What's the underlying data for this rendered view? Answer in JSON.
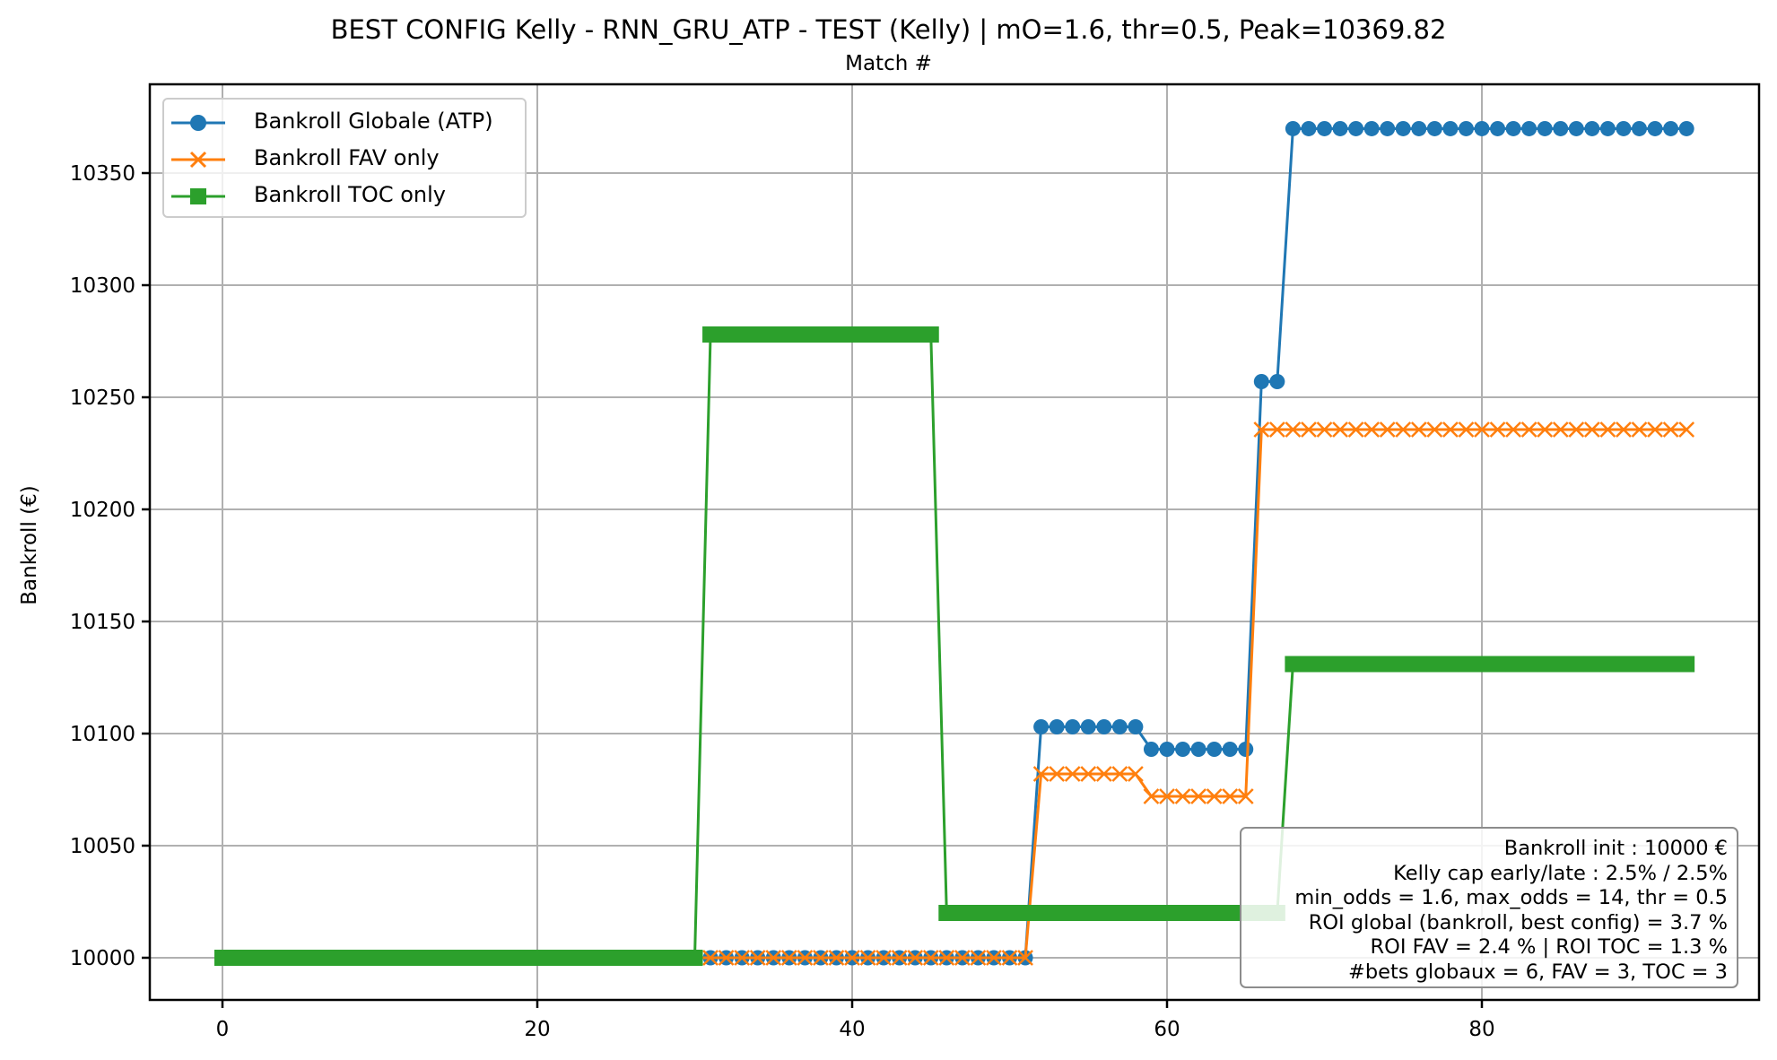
{
  "chart_data": {
    "type": "line",
    "title": "BEST CONFIG Kelly - RNN_GRU_ATP - TEST (Kelly) | mO=1.6, thr=0.5, Peak=10369.82",
    "xlabel": "Match #",
    "ylabel": "Bankroll (€)",
    "xlim": [
      -4.6,
      97.6
    ],
    "ylim": [
      9981.2,
      10389.6
    ],
    "xticks": [
      0,
      20,
      40,
      60,
      80
    ],
    "yticks": [
      10000,
      10050,
      10100,
      10150,
      10200,
      10250,
      10300,
      10350
    ],
    "grid": true,
    "legend_position": "upper left",
    "x": [
      0,
      1,
      2,
      3,
      4,
      5,
      6,
      7,
      8,
      9,
      10,
      11,
      12,
      13,
      14,
      15,
      16,
      17,
      18,
      19,
      20,
      21,
      22,
      23,
      24,
      25,
      26,
      27,
      28,
      29,
      30,
      31,
      32,
      33,
      34,
      35,
      36,
      37,
      38,
      39,
      40,
      41,
      42,
      43,
      44,
      45,
      46,
      47,
      48,
      49,
      50,
      51,
      52,
      53,
      54,
      55,
      56,
      57,
      58,
      59,
      60,
      61,
      62,
      63,
      64,
      65,
      66,
      67,
      68,
      69,
      70,
      71,
      72,
      73,
      74,
      75,
      76,
      77,
      78,
      79,
      80,
      81,
      82,
      83,
      84,
      85,
      86,
      87,
      88,
      89,
      90,
      91,
      92,
      93
    ],
    "series": [
      {
        "name": "Bankroll Globale (ATP)",
        "color": "#1f77b4",
        "marker": "circle",
        "segments": [
          {
            "from": 0,
            "to": 51,
            "value": 10000
          },
          {
            "from": 52,
            "to": 58,
            "value": 10103
          },
          {
            "from": 59,
            "to": 65,
            "value": 10093
          },
          {
            "from": 66,
            "to": 67,
            "value": 10257
          },
          {
            "from": 68,
            "to": 93,
            "value": 10369.82
          }
        ]
      },
      {
        "name": "Bankroll FAV only",
        "color": "#ff7f0e",
        "marker": "x",
        "segments": [
          {
            "from": 0,
            "to": 51,
            "value": 10000
          },
          {
            "from": 52,
            "to": 58,
            "value": 10082
          },
          {
            "from": 59,
            "to": 65,
            "value": 10072
          },
          {
            "from": 66,
            "to": 93,
            "value": 10235.6
          }
        ]
      },
      {
        "name": "Bankroll TOC only",
        "color": "#2ca02c",
        "marker": "square",
        "segments": [
          {
            "from": 0,
            "to": 30,
            "value": 10000
          },
          {
            "from": 31,
            "to": 45,
            "value": 10278
          },
          {
            "from": 46,
            "to": 67,
            "value": 10020
          },
          {
            "from": 68,
            "to": 93,
            "value": 10131
          }
        ]
      }
    ],
    "annotation_box": [
      "Bankroll init : 10000 €",
      "Kelly cap early/late : 2.5% / 2.5%",
      "min_odds = 1.6, max_odds = 14, thr = 0.5",
      "ROI global (bankroll, best config) = 3.7 %",
      "ROI FAV = 2.4 % | ROI TOC = 1.3 %",
      "#bets globaux = 6, FAV = 3, TOC = 3"
    ]
  },
  "legend": {
    "items": [
      {
        "label": "Bankroll Globale (ATP)",
        "icon": "circle-marker-line-icon",
        "color": "#1f77b4"
      },
      {
        "label": "Bankroll FAV only",
        "icon": "x-marker-line-icon",
        "color": "#ff7f0e"
      },
      {
        "label": "Bankroll TOC only",
        "icon": "square-marker-line-icon",
        "color": "#2ca02c"
      }
    ]
  },
  "info": {
    "lines": [
      "Bankroll init : 10000 €",
      "Kelly cap early/late : 2.5% / 2.5%",
      "min_odds = 1.6, max_odds = 14, thr = 0.5",
      "ROI global (bankroll, best config) = 3.7 %",
      "ROI FAV = 2.4 % | ROI TOC = 1.3 %",
      "#bets globaux = 6, FAV = 3, TOC = 3"
    ]
  }
}
